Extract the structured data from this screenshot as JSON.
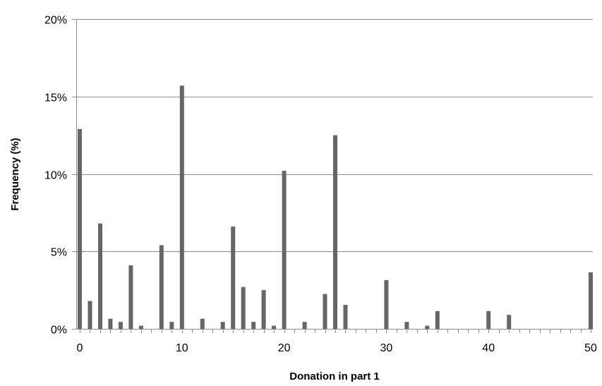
{
  "chart_data": {
    "type": "bar",
    "title": "",
    "xlabel": "Donation in part 1",
    "ylabel": "Frequency (%)",
    "xlim": [
      0,
      50
    ],
    "ylim": [
      0,
      20
    ],
    "x_ticks": [
      0,
      10,
      20,
      30,
      40,
      50
    ],
    "x_tick_labels": [
      "0",
      "10",
      "20",
      "30",
      "40",
      "50"
    ],
    "y_ticks": [
      0,
      5,
      10,
      15,
      20
    ],
    "y_tick_labels": [
      "0%",
      "5%",
      "10%",
      "15%",
      "20%"
    ],
    "grid": "horizontal",
    "legend": "none",
    "bar_color": "#666666",
    "x": [
      0,
      1,
      2,
      3,
      4,
      5,
      6,
      8,
      9,
      10,
      12,
      14,
      15,
      16,
      17,
      18,
      19,
      20,
      22,
      24,
      25,
      26,
      30,
      32,
      34,
      35,
      40,
      42,
      50
    ],
    "values": [
      12.9,
      1.8,
      6.8,
      0.65,
      0.45,
      4.1,
      0.2,
      5.4,
      0.45,
      15.7,
      0.65,
      0.45,
      6.6,
      2.7,
      0.45,
      2.5,
      0.2,
      10.2,
      0.45,
      2.25,
      12.5,
      1.55,
      3.15,
      0.45,
      0.2,
      1.15,
      1.15,
      0.9,
      3.65
    ]
  }
}
